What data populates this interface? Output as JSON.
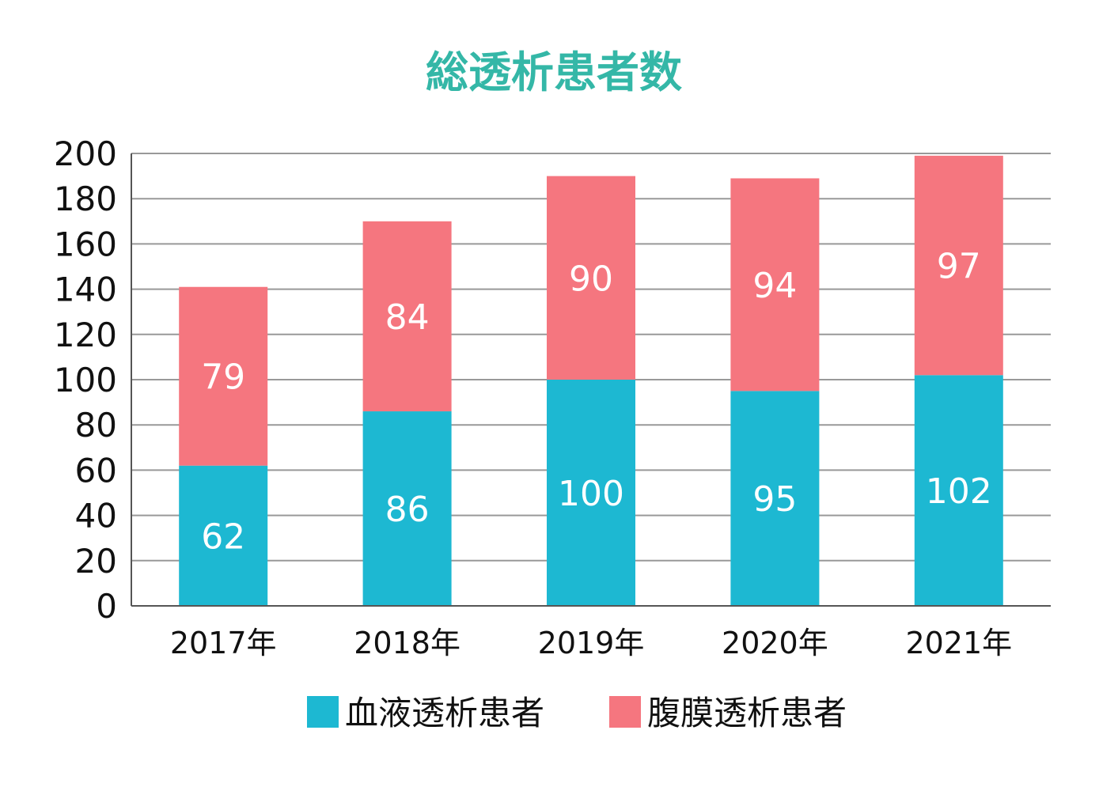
{
  "chart_data": {
    "type": "bar",
    "stacked": true,
    "title": "総透析患者数",
    "categories": [
      "2017年",
      "2018年",
      "2019年",
      "2020年",
      "2021年"
    ],
    "series": [
      {
        "name": "血液透析患者",
        "values": [
          62,
          86,
          100,
          95,
          102
        ],
        "color": "#1db8d2"
      },
      {
        "name": "腹膜透析患者",
        "values": [
          79,
          84,
          90,
          94,
          97
        ],
        "color": "#f5767f"
      }
    ],
    "ylim": [
      0,
      200
    ],
    "yticks": [
      0,
      20,
      40,
      60,
      80,
      100,
      120,
      140,
      160,
      180,
      200
    ],
    "grid": true,
    "legend_position": "bottom-center",
    "title_color": "#34b7a7"
  }
}
